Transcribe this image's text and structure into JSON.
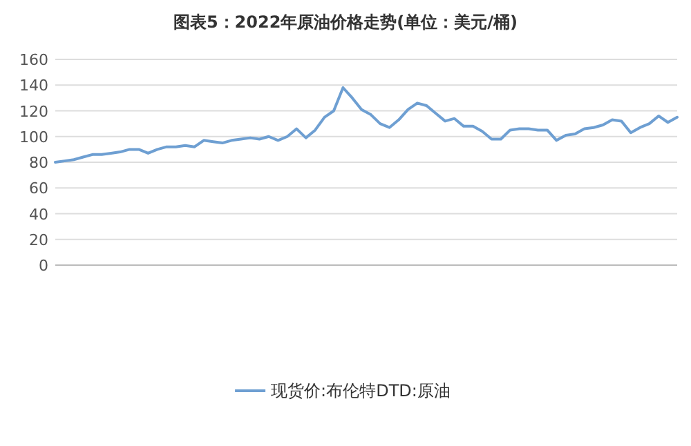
{
  "chart_data": {
    "type": "line",
    "title": "图表5：2022年原油价格走势(单位：美元/桶)",
    "categories": [
      null,
      null,
      null,
      null,
      null,
      null,
      null,
      null,
      null,
      null,
      null,
      null,
      null,
      null,
      null,
      null,
      null,
      null,
      null,
      null,
      null,
      null,
      null,
      null,
      null,
      null,
      null,
      null,
      null,
      null,
      null,
      null,
      null,
      null,
      null,
      null,
      null,
      null,
      null,
      null,
      null,
      null,
      null,
      null,
      null,
      null,
      null,
      null,
      null,
      null,
      null,
      null,
      null,
      null,
      null,
      null,
      null,
      null,
      null,
      null,
      null,
      null,
      null,
      null,
      null,
      null,
      null,
      null
    ],
    "series": [
      {
        "name": "现货价:布伦特DTD:原油",
        "color": "#6e9fd2",
        "values": [
          80,
          81,
          82,
          84,
          86,
          86,
          87,
          88,
          90,
          90,
          87,
          90,
          92,
          92,
          93,
          92,
          97,
          96,
          95,
          97,
          98,
          99,
          98,
          100,
          97,
          100,
          106,
          99,
          105,
          115,
          120,
          138,
          130,
          121,
          117,
          110,
          107,
          113,
          121,
          126,
          124,
          118,
          112,
          114,
          108,
          108,
          104,
          98,
          98,
          105,
          106,
          106,
          105,
          105,
          97,
          101,
          102,
          106,
          107,
          109,
          113,
          112,
          103,
          107,
          110,
          116,
          111,
          115
        ]
      }
    ],
    "ylim": [
      0,
      160
    ],
    "yticks": [
      0,
      20,
      40,
      60,
      80,
      100,
      120,
      140,
      160
    ],
    "grid": "y",
    "legend": "bottom",
    "marker": "none",
    "line_style": "solid"
  }
}
